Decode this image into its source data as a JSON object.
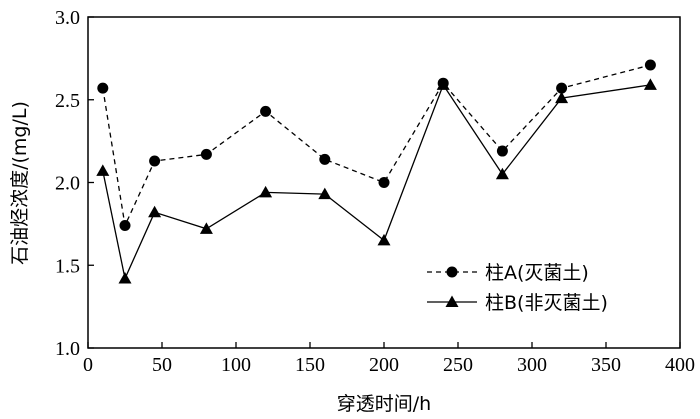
{
  "chart_data": {
    "type": "line",
    "xlabel": "穿透时间/h",
    "ylabel": "石油烃浓度/(mg/L)",
    "xlim": [
      0,
      400
    ],
    "ylim": [
      1.0,
      3.0
    ],
    "xticks": [
      0,
      50,
      100,
      150,
      200,
      250,
      300,
      350,
      400
    ],
    "yticks": [
      1.0,
      1.5,
      2.0,
      2.5,
      3.0
    ],
    "xtick_labels": [
      "0",
      "50",
      "100",
      "150",
      "200",
      "250",
      "300",
      "350",
      "400"
    ],
    "ytick_labels": [
      "1.0",
      "1.5",
      "2.0",
      "2.5",
      "3.0"
    ],
    "legend_position": "bottom-right",
    "grid": false,
    "series": [
      {
        "name": "柱A(灭菌土)",
        "line_style": "dashed",
        "marker": "circle",
        "color": "#000000",
        "x": [
          10,
          25,
          45,
          80,
          120,
          160,
          200,
          240,
          280,
          320,
          380
        ],
        "y": [
          2.57,
          1.74,
          2.13,
          2.17,
          2.43,
          2.14,
          2.0,
          2.6,
          2.19,
          2.57,
          2.71
        ]
      },
      {
        "name": "柱B(非灭菌土)",
        "line_style": "solid",
        "marker": "triangle",
        "color": "#000000",
        "x": [
          10,
          25,
          45,
          80,
          120,
          160,
          200,
          240,
          280,
          320,
          380
        ],
        "y": [
          2.07,
          1.42,
          1.82,
          1.72,
          1.94,
          1.93,
          1.65,
          2.59,
          2.05,
          2.51,
          2.59
        ]
      }
    ]
  }
}
